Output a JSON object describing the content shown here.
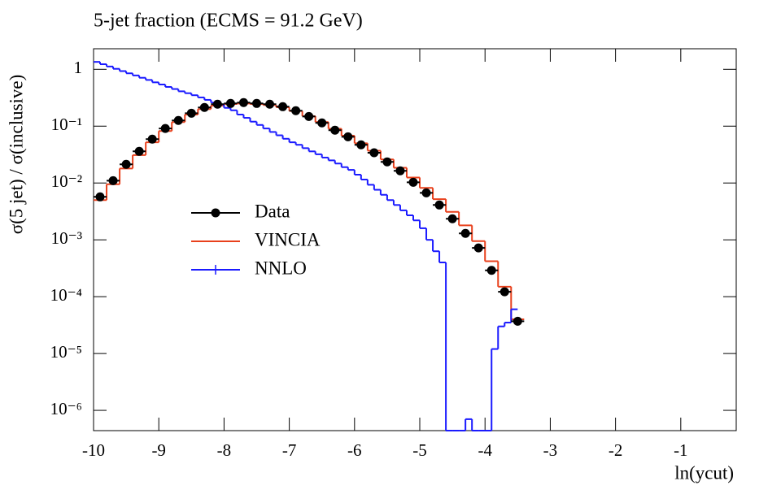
{
  "chart_data": {
    "type": "histogram",
    "title": "5-jet fraction (ECMS = 91.2 GeV)",
    "xlabel": "ln(ycut)",
    "ylabel": "σ(5 jet) / σ(inclusive)",
    "xlim": [
      -10,
      -0.15
    ],
    "ylim": [
      4.4e-07,
      2.3
    ],
    "yscale": "log",
    "xticks": [
      -10,
      -9,
      -8,
      -7,
      -6,
      -5,
      -4,
      -3,
      -2,
      -1
    ],
    "yticks": [
      1,
      {
        "value": 0.1,
        "label": "10⁻¹"
      },
      {
        "value": 0.01,
        "label": "10⁻²"
      },
      {
        "value": 0.001,
        "label": "10⁻³"
      },
      {
        "value": 0.0001,
        "label": "10⁻⁴"
      },
      {
        "value": 1e-05,
        "label": "10⁻⁵"
      },
      {
        "value": 1e-06,
        "label": "10⁻⁶"
      }
    ],
    "legend": "left",
    "series": [
      {
        "name": "Data",
        "type": "scatter",
        "color": "#000000",
        "x": [
          -9.9,
          -9.7,
          -9.5,
          -9.3,
          -9.1,
          -8.9,
          -8.7,
          -8.5,
          -8.3,
          -8.1,
          -7.9,
          -7.7,
          -7.5,
          -7.3,
          -7.1,
          -6.9,
          -6.7,
          -6.5,
          -6.3,
          -6.1,
          -5.9,
          -5.7,
          -5.5,
          -5.3,
          -5.1,
          -4.9,
          -4.7,
          -4.5,
          -4.3,
          -4.1,
          -3.9,
          -3.7,
          -3.5
        ],
        "values": [
          0.0057,
          0.011,
          0.0213,
          0.036,
          0.059,
          0.091,
          0.126,
          0.169,
          0.213,
          0.243,
          0.251,
          0.26,
          0.251,
          0.243,
          0.22,
          0.187,
          0.148,
          0.114,
          0.085,
          0.065,
          0.047,
          0.034,
          0.0235,
          0.0164,
          0.0103,
          0.0067,
          0.0041,
          0.00235,
          0.0013,
          0.00072,
          0.00029,
          0.000122,
          3.7e-05
        ]
      },
      {
        "name": "VINCIA",
        "type": "step",
        "color": "#e8401c",
        "bins": [
          -10,
          -9.8,
          -9.6,
          -9.4,
          -9.2,
          -9,
          -8.8,
          -8.6,
          -8.4,
          -8.2,
          -8,
          -7.8,
          -7.6,
          -7.4,
          -7.2,
          -7,
          -6.8,
          -6.6,
          -6.4,
          -6.2,
          -6,
          -5.8,
          -5.6,
          -5.4,
          -5.2,
          -5,
          -4.8,
          -4.6,
          -4.4,
          -4.2,
          -4,
          -3.8,
          -3.6,
          -3.4
        ],
        "values": [
          0.005,
          0.0095,
          0.018,
          0.031,
          0.052,
          0.082,
          0.118,
          0.16,
          0.2,
          0.23,
          0.245,
          0.25,
          0.245,
          0.235,
          0.215,
          0.185,
          0.15,
          0.118,
          0.09,
          0.068,
          0.05,
          0.037,
          0.026,
          0.0185,
          0.0125,
          0.0082,
          0.0052,
          0.0031,
          0.0018,
          0.00095,
          0.00042,
          0.00015,
          4e-05
        ]
      },
      {
        "name": "NNLO",
        "type": "step",
        "color": "#1a1aff",
        "bins": [
          -10,
          -9.9,
          -9.8,
          -9.7,
          -9.6,
          -9.5,
          -9.4,
          -9.3,
          -9.2,
          -9.1,
          -9,
          -8.9,
          -8.8,
          -8.7,
          -8.6,
          -8.5,
          -8.4,
          -8.3,
          -8.2,
          -8.1,
          -8,
          -7.9,
          -7.8,
          -7.7,
          -7.6,
          -7.5,
          -7.4,
          -7.3,
          -7.2,
          -7.1,
          -7,
          -6.9,
          -6.8,
          -6.7,
          -6.6,
          -6.5,
          -6.4,
          -6.3,
          -6.2,
          -6.1,
          -6,
          -5.9,
          -5.8,
          -5.7,
          -5.6,
          -5.5,
          -5.4,
          -5.3,
          -5.2,
          -5.1,
          -5,
          -4.9,
          -4.8,
          -4.7,
          -4.6,
          -4.5,
          -4.4,
          -4.3,
          -4.2,
          -4.1,
          -4,
          -3.9,
          -3.8,
          -3.7,
          -3.6,
          -3.5
        ],
        "values": [
          1.35,
          1.23,
          1.12,
          1.02,
          0.93,
          0.85,
          0.78,
          0.71,
          0.65,
          0.59,
          0.54,
          0.49,
          0.45,
          0.41,
          0.38,
          0.35,
          0.32,
          0.29,
          0.26,
          0.24,
          0.21,
          0.19,
          0.16,
          0.14,
          0.12,
          0.105,
          0.091,
          0.079,
          0.069,
          0.06,
          0.052,
          0.047,
          0.041,
          0.036,
          0.032,
          0.028,
          0.025,
          0.022,
          0.019,
          0.017,
          0.014,
          0.0115,
          0.0093,
          0.0076,
          0.0062,
          0.005,
          0.0041,
          0.0033,
          0.0027,
          0.0022,
          0.0016,
          0.001,
          0.00063,
          0.0004,
          0,
          0,
          0,
          7e-07,
          0,
          0,
          0,
          1.2e-05,
          3e-05,
          3.5e-05,
          6e-05
        ]
      }
    ]
  }
}
